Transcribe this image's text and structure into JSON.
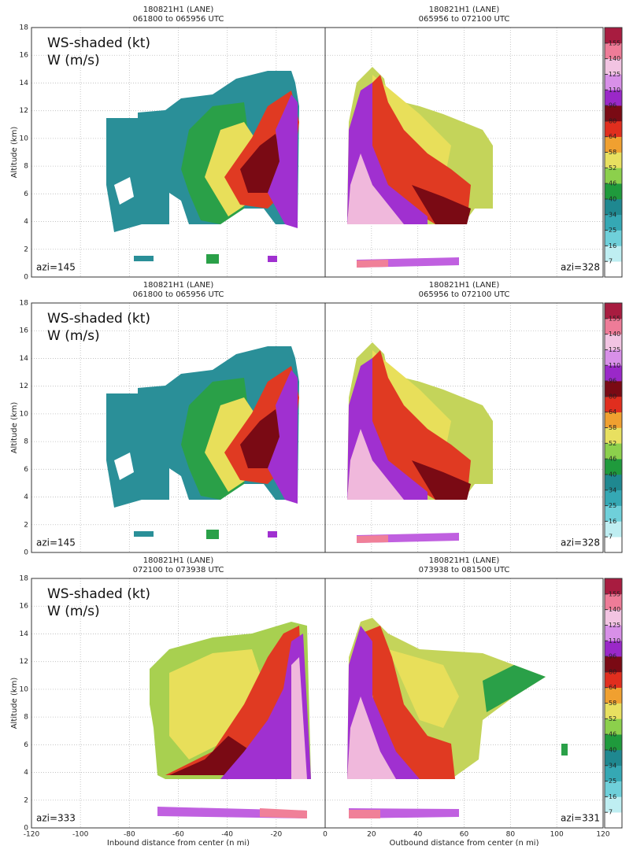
{
  "chart_data": [
    {
      "type": "heatmap",
      "title": "180821H1 (LANE)",
      "subtitle": "061800 to 065956 UTC",
      "legend": [
        "WS-shaded (kt)",
        "W (m/s)"
      ],
      "annotation": "azi=145",
      "ylabel": "Altitude (km)",
      "xlim": [
        -120,
        0
      ],
      "xticks": [
        -120,
        -100,
        -80,
        -60,
        -40,
        -20
      ],
      "ylim": [
        0,
        18
      ],
      "yticks": [
        0,
        2,
        4,
        6,
        8,
        10,
        12,
        14,
        16,
        18
      ],
      "grid": true
    },
    {
      "type": "heatmap",
      "title": "180821H1 (LANE)",
      "subtitle": "065956 to 072100 UTC",
      "annotation": "azi=328",
      "xlim": [
        0,
        120
      ],
      "xticks": [
        0,
        20,
        40,
        60,
        80,
        100,
        120
      ],
      "ylim": [
        0,
        18
      ],
      "yticks": [
        0,
        2,
        4,
        6,
        8,
        10,
        12,
        14,
        16,
        18
      ],
      "grid": true
    },
    {
      "type": "heatmap",
      "title": "180821H1 (LANE)",
      "subtitle": "061800 to 065956 UTC",
      "legend": [
        "WS-shaded (kt)",
        "W (m/s)"
      ],
      "annotation": "azi=145",
      "ylabel": "Altitude (km)",
      "xlim": [
        -120,
        0
      ],
      "xticks": [
        -120,
        -100,
        -80,
        -60,
        -40,
        -20
      ],
      "ylim": [
        0,
        18
      ],
      "yticks": [
        0,
        2,
        4,
        6,
        8,
        10,
        12,
        14,
        16,
        18
      ],
      "grid": true
    },
    {
      "type": "heatmap",
      "title": "180821H1 (LANE)",
      "subtitle": "065956 to 072100 UTC",
      "annotation": "azi=328",
      "xlim": [
        0,
        120
      ],
      "xticks": [
        0,
        20,
        40,
        60,
        80,
        100,
        120
      ],
      "ylim": [
        0,
        18
      ],
      "yticks": [
        0,
        2,
        4,
        6,
        8,
        10,
        12,
        14,
        16,
        18
      ],
      "grid": true
    },
    {
      "type": "heatmap",
      "title": "180821H1 (LANE)",
      "subtitle": "072100 to 073938 UTC",
      "legend": [
        "WS-shaded (kt)",
        "W (m/s)"
      ],
      "annotation": "azi=333",
      "ylabel": "Altitude (km)",
      "xlabel": "Inbound distance from center (n mi)",
      "xlim": [
        -120,
        0
      ],
      "xticks": [
        -120,
        -100,
        -80,
        -60,
        -40,
        -20
      ],
      "ylim": [
        0,
        18
      ],
      "yticks": [
        0,
        2,
        4,
        6,
        8,
        10,
        12,
        14,
        16,
        18
      ],
      "grid": true
    },
    {
      "type": "heatmap",
      "title": "180821H1 (LANE)",
      "subtitle": "073938 to 081500 UTC",
      "annotation": "azi=331",
      "xlabel": "Outbound distance from center (n mi)",
      "xlim": [
        0,
        120
      ],
      "xticks": [
        0,
        20,
        40,
        60,
        80,
        100,
        120
      ],
      "ylim": [
        0,
        18
      ],
      "yticks": [
        0,
        2,
        4,
        6,
        8,
        10,
        12,
        14,
        16,
        18
      ],
      "grid": true
    }
  ],
  "colorbar": {
    "levels": [
      7,
      16,
      25,
      34,
      40,
      46,
      52,
      58,
      64,
      80,
      96,
      110,
      125,
      140,
      155
    ],
    "colors": [
      "#ffffff",
      "#bfeef2",
      "#6fd0da",
      "#35a8b4",
      "#1f8890",
      "#1f9a3c",
      "#8cd04c",
      "#e8e060",
      "#f0a030",
      "#e02e1e",
      "#7a0a14",
      "#9a28c8",
      "#d890e8",
      "#f2c4e2",
      "#ee7c98",
      "#a81c40"
    ]
  }
}
